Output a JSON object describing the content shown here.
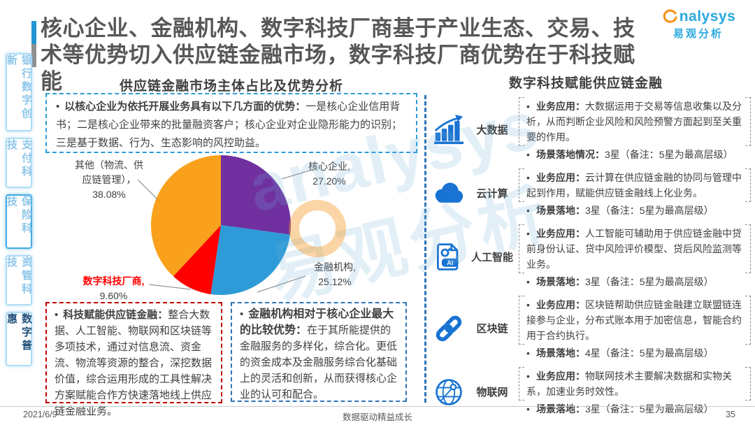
{
  "header": {
    "title_line1": "核心企业、金融机构、数字科技厂商基于产业生态、交易、技",
    "title_line2": "术等优势切入供应链金融市场，数字科技厂商优势在于科技赋能",
    "logo": {
      "brand": "nalysys",
      "brand_cn": "易观分析"
    }
  },
  "sidebar": {
    "items": [
      {
        "label": "银行数字创新"
      },
      {
        "label": "支付科技"
      },
      {
        "label": "保险科技"
      },
      {
        "label": "资管科技"
      },
      {
        "label": "数字普惠"
      }
    ]
  },
  "glyphs": {
    "bullet": "•",
    "ai": "AI"
  },
  "left_panel": {
    "section_title": "供应链金融市场主体占比及优势分析",
    "insight_top": {
      "lead": "以核心企业为依托开展业务具有以下几方面的优势：",
      "body": "一是核心企业信用背书；二是核心企业带来的批量融资客户；核心企业对企业隐形能力的识别；三是基于数据、行为、生态影响的风控助益。"
    },
    "insight_tech": {
      "lead": "科技赋能供应链金融：",
      "body": "整合大数据、人工智能、物联网和区块链等多项技术，通过对信息流、资金流、物流等资源的整合，深挖数据价值，综合运用形成的工具性解决方案赋能合作方快速落地线上供应链金融业务。"
    },
    "insight_fi": {
      "lead": "金融机构相对于核心企业最大的比较优势：",
      "body": "在于其所能提供的金融服务的多样化，综合化。更低的资金成本及金融服务综合化基础上的灵活和创新，从而获得核心企业的认可和配合。"
    }
  },
  "chart_data": {
    "type": "pie",
    "title": "供应链金融市场主体占比及优势分析",
    "legend_position": "outside-labels",
    "slices": [
      {
        "label": "核心企业",
        "value": 27.2,
        "display": "27.20%",
        "color": "#7030a0",
        "label_lines": [
          "核心企业,",
          "27.20%"
        ]
      },
      {
        "label": "金融机构",
        "value": 25.12,
        "display": "25.12%",
        "color": "#2e9bd8",
        "label_lines": [
          "金融机构,",
          "25.12%"
        ]
      },
      {
        "label": "数字科技厂商",
        "value": 9.6,
        "display": "9.60%",
        "color": "#ff0000",
        "label_lines": [
          "数字科技厂商,",
          "9.60%"
        ]
      },
      {
        "label": "其他（物流、供应链管理）",
        "value": 38.08,
        "display": "38.08%",
        "color": "#f9a11c",
        "label_lines": [
          "其他（物流、供",
          "应链管理），",
          "38.08%"
        ]
      }
    ]
  },
  "right_panel": {
    "section_title": "数字科技赋能供应链金融",
    "rows": [
      {
        "icon": "bar-chart-icon",
        "label": "大数据",
        "app_lead": "业务应用：",
        "app_body": "大数据运用于交易等信息收集以及分析，从而判断企业风险和风险预警方面起到至关重要的作用。",
        "scene_lead": "场景落地情况：",
        "scene_body": "3星（备注：5星为最高层级）"
      },
      {
        "icon": "cloud-icon",
        "label": "云计算",
        "app_lead": "业务应用：",
        "app_body": "云计算在供应链金融的协同与管理中起到作用，赋能供应链金融线上化业务。",
        "scene_lead": "场景落地：",
        "scene_body": "3星（备注：5星为最高层级）"
      },
      {
        "icon": "ai-doc-icon",
        "label": "人工智能",
        "app_lead": "业务应用：",
        "app_body": "人工智能可辅助用于供应链金融中贷前身份认证、贷中风险评价模型、贷后风险监测等业务。",
        "scene_lead": "场景落地：",
        "scene_body": "3星（备注：5星为最高层级）"
      },
      {
        "icon": "chain-link-icon",
        "label": "区块链",
        "app_lead": "业务应用：",
        "app_body": "区块链帮助供应链金融建立联盟链连接参与企业，分布式账本用于加密信息，智能合约用于合约执行。",
        "scene_lead": "场景落地：",
        "scene_body": "4星（备注：5星为最高层级）"
      },
      {
        "icon": "globe-icon",
        "label": "物联网",
        "app_lead": "业务应用：",
        "app_body": "物联网技术主要解决数据和实物关系，加速业务时效性。",
        "scene_lead": "场景落地：",
        "scene_body": "3星（备注：5星为最高层级）"
      }
    ]
  },
  "watermark": {
    "line1": "analysys",
    "line2": "易观分析"
  },
  "footer": {
    "date": "2021/6/9",
    "slogan": "数据驱动精益成长",
    "page": "35"
  },
  "colors": {
    "accent_blue": "#2196d3",
    "divider_blue": "#2e75b6",
    "box_red": "#c00000",
    "icon_blue": "#1873d3",
    "logo_orange": "#f7941e",
    "logo_blue": "#29a8df"
  }
}
